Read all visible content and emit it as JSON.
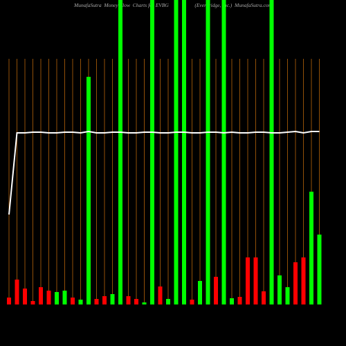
{
  "chart_data": {
    "type": "bar",
    "title": "MunafaSutra  Money Flow  Charts for EVBG                    (Everbridge, Inc.)  MunafaSutra.com",
    "categories": [
      null,
      null,
      null,
      null,
      null,
      null,
      null,
      null,
      null,
      null,
      null,
      null,
      null,
      null,
      null,
      null,
      null,
      null,
      null,
      null,
      null,
      null,
      null,
      null,
      null,
      null,
      null,
      null,
      null,
      null,
      null,
      null,
      null,
      null,
      null,
      null,
      null,
      null,
      null,
      null
    ],
    "values": [
      10,
      36,
      23,
      5,
      25,
      20,
      18,
      20,
      10,
      7,
      329,
      8,
      12,
      15,
      440,
      12,
      8,
      3,
      440,
      26,
      8,
      440,
      440,
      7,
      34,
      440,
      40,
      440,
      9,
      11,
      68,
      68,
      19,
      440,
      42,
      25,
      61,
      68,
      163,
      101
    ],
    "colors": [
      "#ff0000",
      "#ff0000",
      "#ff0000",
      "#ff0000",
      "#ff0000",
      "#ff0000",
      "#00ff00",
      "#00ff00",
      "#ff0000",
      "#00ff00",
      "#00ff00",
      "#ff0000",
      "#ff0000",
      "#00ff00",
      "#00ff00",
      "#ff0000",
      "#ff0000",
      "#00ff00",
      "#00ff00",
      "#ff0000",
      "#00ff00",
      "#00ff00",
      "#00ff00",
      "#ff0000",
      "#00ff00",
      "#00ff00",
      "#ff0000",
      "#00ff00",
      "#00ff00",
      "#ff0000",
      "#ff0000",
      "#ff0000",
      "#ff0000",
      "#00ff00",
      "#00ff00",
      "#00ff00",
      "#ff0000",
      "#ff0000",
      "#00ff00",
      "#00ff00"
    ],
    "line": {
      "color": "#ffffff",
      "values": [
        130,
        248,
        248,
        249,
        249,
        248,
        248,
        249,
        249,
        248,
        250,
        248,
        248,
        249,
        249,
        248,
        248,
        249,
        249,
        248,
        248,
        249,
        249,
        248,
        248,
        249,
        249,
        248,
        249,
        248,
        248,
        249,
        249,
        248,
        248,
        249,
        250,
        248,
        250,
        250
      ]
    },
    "ylim": [
      0,
      440
    ]
  }
}
